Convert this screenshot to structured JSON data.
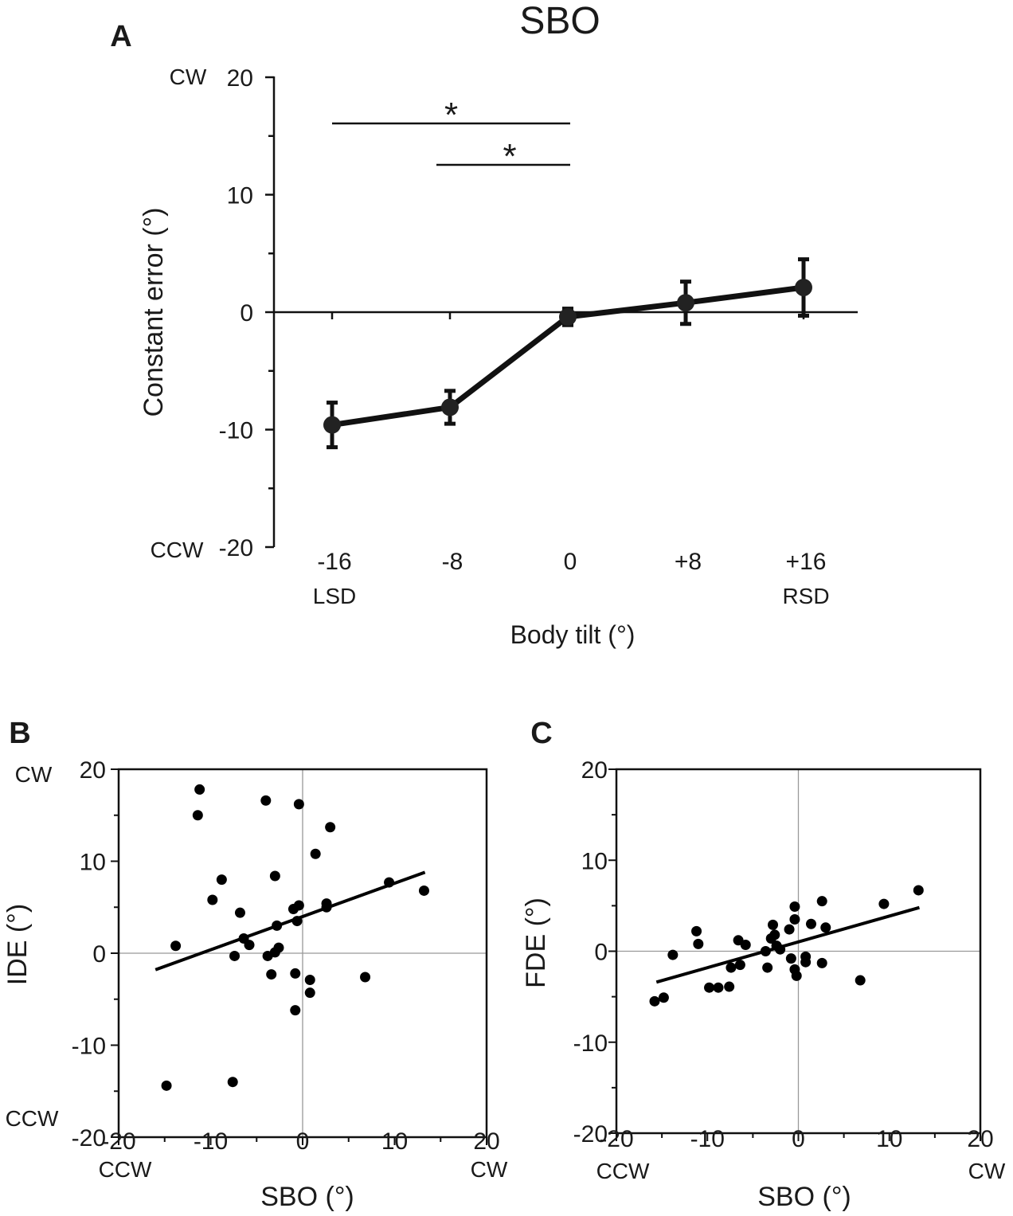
{
  "figure_title": "SBO",
  "chart_data": [
    {
      "panel": "A",
      "type": "line",
      "title": "SBO",
      "xlabel": "Body tilt (°)",
      "ylabel": "Constant error (°)",
      "categories": [
        "-16",
        "-8",
        "0",
        "+8",
        "+16"
      ],
      "category_sublabels": [
        "LSD",
        "",
        "",
        "",
        "RSD"
      ],
      "x": [
        -16,
        -8,
        0,
        8,
        16
      ],
      "values": [
        -9.6,
        -8.1,
        -0.4,
        0.8,
        2.1
      ],
      "error": [
        1.9,
        1.4,
        0.7,
        1.8,
        2.4
      ],
      "ylim": [
        -20,
        20
      ],
      "yticks": [
        -20,
        -10,
        0,
        10,
        20
      ],
      "ytick_labels": [
        "-20",
        "-10",
        "0",
        "10",
        "20"
      ],
      "direction_labels": {
        "top": "CW",
        "bottom": "CCW"
      },
      "significance": [
        {
          "from": "-16",
          "to": "0",
          "label": "*"
        },
        {
          "from": "-8",
          "to": "0",
          "label": "*"
        }
      ]
    },
    {
      "panel": "B",
      "type": "scatter",
      "xlabel": "SBO (°)",
      "ylabel": "IDE (°)",
      "xlim": [
        -20,
        20
      ],
      "ylim": [
        -20,
        20
      ],
      "ticks": [
        "-20",
        "-10",
        "0",
        "10",
        "20"
      ],
      "direction_labels": {
        "y_top": "CW",
        "y_bottom": "CCW",
        "x_left": "CCW",
        "x_right": "CW"
      },
      "points": [
        [
          -11.2,
          17.8
        ],
        [
          -11.4,
          15.0
        ],
        [
          -4.0,
          16.6
        ],
        [
          -0.4,
          16.2
        ],
        [
          3.0,
          13.7
        ],
        [
          1.4,
          10.8
        ],
        [
          -8.8,
          8.0
        ],
        [
          -3.0,
          8.4
        ],
        [
          -9.8,
          5.8
        ],
        [
          -6.8,
          4.4
        ],
        [
          -0.4,
          5.2
        ],
        [
          -1.0,
          4.8
        ],
        [
          2.6,
          5.4
        ],
        [
          2.6,
          5.0
        ],
        [
          -0.6,
          3.5
        ],
        [
          -2.8,
          3.0
        ],
        [
          -6.4,
          1.6
        ],
        [
          -5.8,
          0.9
        ],
        [
          -13.8,
          0.8
        ],
        [
          -2.6,
          0.6
        ],
        [
          -3.0,
          0.1
        ],
        [
          -7.4,
          -0.3
        ],
        [
          -3.8,
          -0.3
        ],
        [
          -3.4,
          -2.3
        ],
        [
          -0.8,
          -2.2
        ],
        [
          0.8,
          -2.9
        ],
        [
          0.8,
          -4.3
        ],
        [
          -0.8,
          -6.2
        ],
        [
          6.8,
          -2.6
        ],
        [
          9.4,
          7.7
        ],
        [
          13.2,
          6.8
        ],
        [
          -14.8,
          -14.4
        ],
        [
          -7.6,
          -14.0
        ]
      ],
      "regression": {
        "x": [
          -16.0,
          13.3
        ],
        "y": [
          -1.8,
          8.8
        ]
      }
    },
    {
      "panel": "C",
      "type": "scatter",
      "xlabel": "SBO (°)",
      "ylabel": "FDE (°)",
      "xlim": [
        -20,
        20
      ],
      "ylim": [
        -20,
        20
      ],
      "ticks": [
        "-20",
        "-10",
        "0",
        "10",
        "20"
      ],
      "direction_labels": {
        "x_left": "CCW",
        "x_right": "CW"
      },
      "points": [
        [
          -15.8,
          -5.5
        ],
        [
          -14.8,
          -5.1
        ],
        [
          -13.8,
          -0.4
        ],
        [
          -11.2,
          2.2
        ],
        [
          -11.0,
          0.8
        ],
        [
          -9.8,
          -4.0
        ],
        [
          -8.8,
          -4.0
        ],
        [
          -7.6,
          -3.9
        ],
        [
          -7.4,
          -1.8
        ],
        [
          -6.6,
          1.2
        ],
        [
          -6.4,
          -1.5
        ],
        [
          -5.8,
          0.7
        ],
        [
          -3.6,
          0.0
        ],
        [
          -3.4,
          -1.8
        ],
        [
          -3.0,
          1.4
        ],
        [
          -2.8,
          2.9
        ],
        [
          -2.6,
          1.8
        ],
        [
          -2.4,
          0.6
        ],
        [
          -2.0,
          0.2
        ],
        [
          -1.0,
          2.4
        ],
        [
          -0.8,
          -0.8
        ],
        [
          -0.4,
          4.9
        ],
        [
          -0.4,
          3.5
        ],
        [
          -0.4,
          -2.0
        ],
        [
          -0.2,
          -2.7
        ],
        [
          0.8,
          -1.2
        ],
        [
          0.8,
          -0.6
        ],
        [
          1.4,
          3.0
        ],
        [
          2.6,
          5.5
        ],
        [
          2.6,
          -1.3
        ],
        [
          3.0,
          2.6
        ],
        [
          6.8,
          -3.2
        ],
        [
          9.4,
          5.2
        ],
        [
          13.2,
          6.7
        ]
      ],
      "regression": {
        "x": [
          -15.6,
          13.3
        ],
        "y": [
          -3.4,
          4.8
        ]
      }
    }
  ]
}
